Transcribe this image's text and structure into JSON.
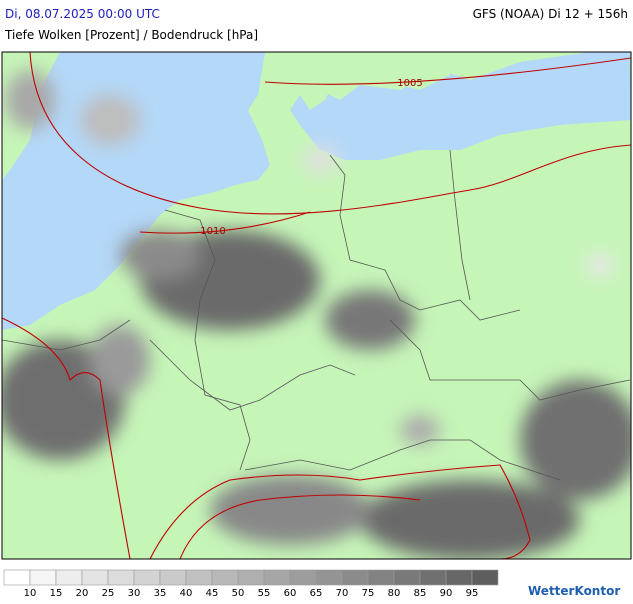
{
  "header": {
    "time": "Di, 08.07.2025 00:00 UTC",
    "model": "GFS (NOAA) Di 12 + 156h",
    "subtitle": "Tiefe Wolken [Prozent] / Bodendruck [hPa]"
  },
  "isobar_labels": [
    "1005",
    "1010"
  ],
  "legend": {
    "labels": [
      "10",
      "15",
      "20",
      "25",
      "30",
      "35",
      "40",
      "45",
      "50",
      "55",
      "60",
      "65",
      "70",
      "75",
      "80",
      "85",
      "90",
      "95"
    ],
    "colors": [
      "#ffffff",
      "#f6f6f6",
      "#ededed",
      "#e4e4e4",
      "#dcdcdc",
      "#d3d3d3",
      "#cacaca",
      "#c1c1c1",
      "#b8b8b8",
      "#afafaf",
      "#a6a6a6",
      "#9d9d9d",
      "#949494",
      "#8b8b8b",
      "#828282",
      "#797979",
      "#707070",
      "#676767",
      "#5e5e5e"
    ]
  },
  "logo": "WetterKontor"
}
